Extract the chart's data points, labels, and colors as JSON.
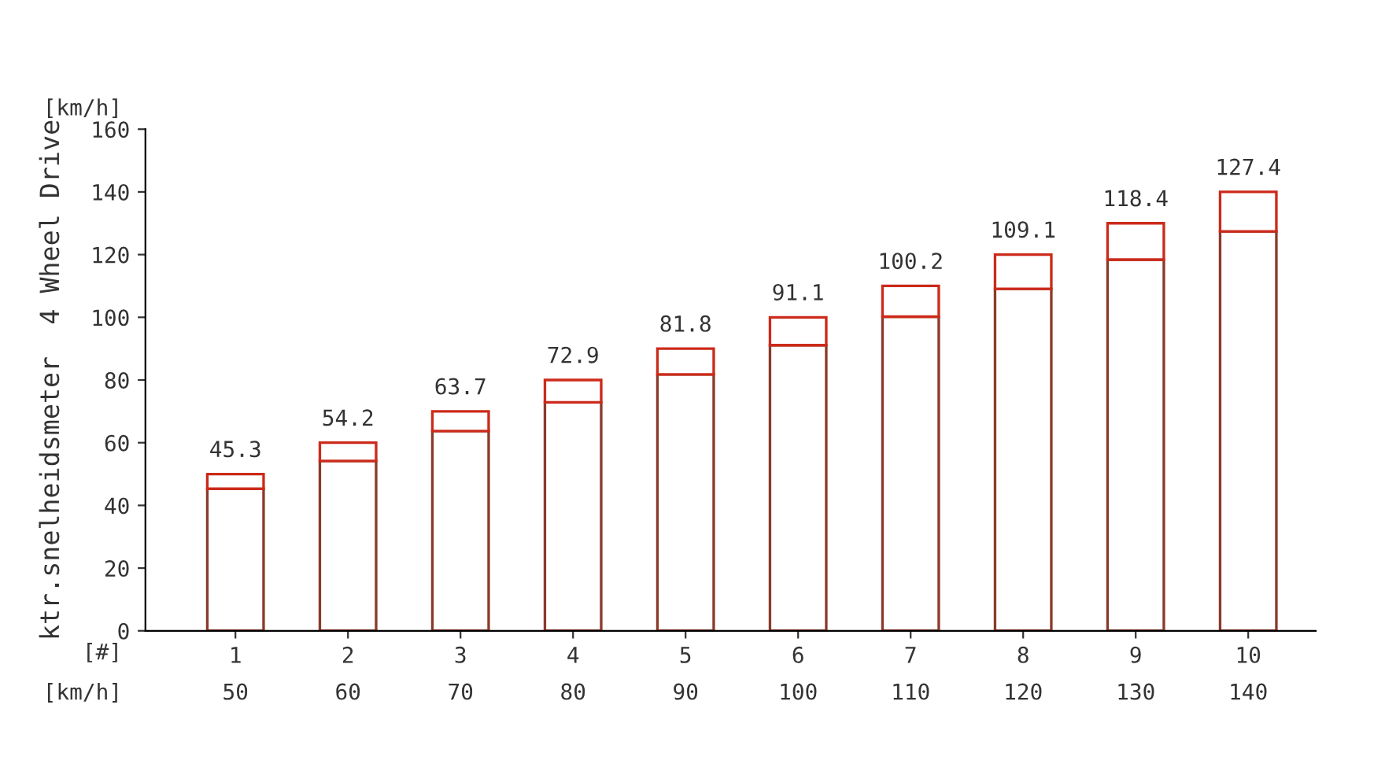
{
  "chart_data": {
    "type": "bar",
    "stacked": true,
    "ylabel": "ktr.snelheidsmeter  4 Wheel Drive",
    "categories": [
      "1",
      "2",
      "3",
      "4",
      "5",
      "6",
      "7",
      "8",
      "9",
      "10"
    ],
    "series": [
      {
        "color": "#8b3a2a",
        "values": [
          45.3,
          54.2,
          63.7,
          72.9,
          81.8,
          91.1,
          100.2,
          109.1,
          118.4,
          127.4
        ],
        "value_labels": [
          "45.3",
          "54.2",
          "63.7",
          "72.9",
          "81.8",
          "91.1",
          "100.2",
          "109.1",
          "118.4",
          "127.4"
        ]
      },
      {
        "color": "#cc2a1a",
        "values": [
          4.7,
          5.8,
          6.3,
          7.1,
          8.2,
          8.9,
          9.8,
          10.9,
          11.6,
          12.6
        ]
      }
    ],
    "ylim": [
      0,
      160
    ],
    "yticks": [
      0,
      20,
      40,
      60,
      80,
      100,
      120,
      140,
      160
    ],
    "annotations": [
      "[km/h]",
      "[#]",
      "[km/h]",
      "50",
      "60",
      "70",
      "80",
      "90",
      "100",
      "110",
      "120",
      "130",
      "140"
    ]
  }
}
